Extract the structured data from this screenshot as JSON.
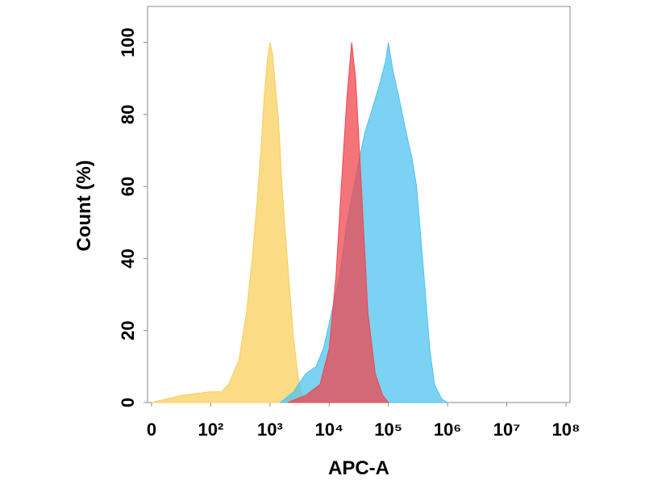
{
  "chart_data": {
    "type": "area",
    "x_label": "APC-A",
    "y_label": "Count  (%)",
    "xscale": "symlog",
    "xlim": [
      0,
      100000000
    ],
    "ylim": [
      0,
      110
    ],
    "xticks": [
      0,
      {
        "value": 100,
        "label": "10²"
      },
      {
        "value": 1000,
        "label": "10³"
      },
      {
        "value": 10000,
        "label": "10⁴"
      },
      {
        "value": 100000,
        "label": "10⁵"
      },
      {
        "value": 1000000,
        "label": "10⁶"
      },
      {
        "value": 10000000,
        "label": "10⁷"
      },
      {
        "value": 100000000,
        "label": "10⁸"
      }
    ],
    "yticks": [
      0,
      20,
      40,
      60,
      80,
      100
    ],
    "series": [
      {
        "color": "#f8cf5e",
        "x": [
          0,
          50,
          100,
          150,
          200,
          300,
          400,
          500,
          600,
          700,
          800,
          900,
          1000,
          1100,
          1200,
          1400,
          1600,
          2000,
          2500,
          3000,
          3500,
          4000
        ],
        "values": [
          0,
          2,
          3,
          3,
          5,
          12,
          25,
          40,
          55,
          70,
          85,
          95,
          100,
          97,
          90,
          78,
          60,
          38,
          18,
          7,
          2,
          0
        ]
      },
      {
        "color": "#4fc3ee",
        "x": [
          1500,
          2500,
          4000,
          6000,
          8000,
          10000,
          15000,
          20000,
          30000,
          40000,
          50000,
          70000,
          90000,
          100000,
          120000,
          150000,
          200000,
          250000,
          300000,
          400000,
          500000,
          600000,
          800000,
          1000000
        ],
        "values": [
          0,
          3,
          8,
          10,
          15,
          22,
          35,
          50,
          65,
          75,
          80,
          88,
          95,
          100,
          92,
          85,
          75,
          68,
          60,
          35,
          15,
          5,
          1,
          0
        ]
      },
      {
        "color": "#f0454e",
        "x": [
          2000,
          4000,
          7000,
          10000,
          13000,
          16000,
          20000,
          24000,
          28000,
          35000,
          45000,
          60000,
          80000,
          100000
        ],
        "values": [
          0,
          2,
          5,
          15,
          35,
          60,
          85,
          100,
          90,
          60,
          25,
          8,
          2,
          0
        ]
      }
    ]
  }
}
